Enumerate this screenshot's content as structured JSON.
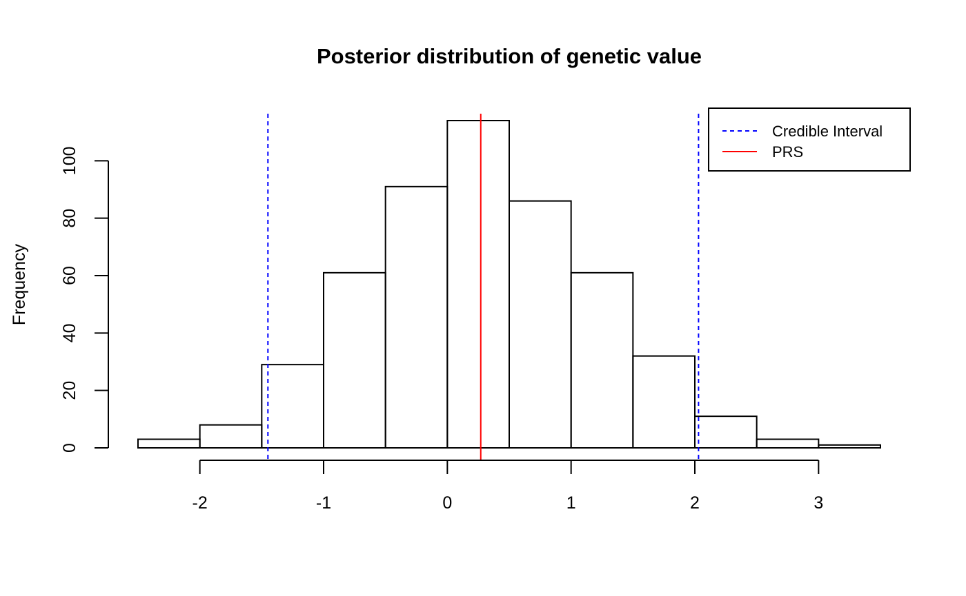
{
  "chart_data": {
    "type": "bar",
    "subtype": "histogram",
    "title": "Posterior distribution of genetic value",
    "xlabel": "",
    "ylabel": "Frequency",
    "xlim": [
      -2.5,
      3.5
    ],
    "ylim": [
      0,
      114
    ],
    "x_ticks": [
      -2,
      -1,
      0,
      1,
      2,
      3
    ],
    "y_ticks": [
      0,
      20,
      40,
      60,
      80,
      100
    ],
    "bins": [
      {
        "start": -2.5,
        "end": -2.0,
        "count": 3
      },
      {
        "start": -2.0,
        "end": -1.5,
        "count": 8
      },
      {
        "start": -1.5,
        "end": -1.0,
        "count": 29
      },
      {
        "start": -1.0,
        "end": -0.5,
        "count": 61
      },
      {
        "start": -0.5,
        "end": 0.0,
        "count": 91
      },
      {
        "start": 0.0,
        "end": 0.5,
        "count": 114
      },
      {
        "start": 0.5,
        "end": 1.0,
        "count": 86
      },
      {
        "start": 1.0,
        "end": 1.5,
        "count": 61
      },
      {
        "start": 1.5,
        "end": 2.0,
        "count": 32
      },
      {
        "start": 2.0,
        "end": 2.5,
        "count": 11
      },
      {
        "start": 2.5,
        "end": 3.0,
        "count": 3
      },
      {
        "start": 3.0,
        "end": 3.5,
        "count": 1
      }
    ],
    "reference_lines": [
      {
        "name": "Credible Interval",
        "x": -1.45,
        "color": "#0000ff",
        "style": "dashed"
      },
      {
        "name": "Credible Interval",
        "x": 2.03,
        "color": "#0000ff",
        "style": "dashed"
      },
      {
        "name": "PRS",
        "x": 0.27,
        "color": "#ff0000",
        "style": "solid"
      }
    ],
    "legend": {
      "position": "top-right",
      "entries": [
        {
          "label": "Credible Interval",
          "color": "#0000ff",
          "style": "dashed"
        },
        {
          "label": "PRS",
          "color": "#ff0000",
          "style": "solid"
        }
      ]
    },
    "grid": false
  }
}
